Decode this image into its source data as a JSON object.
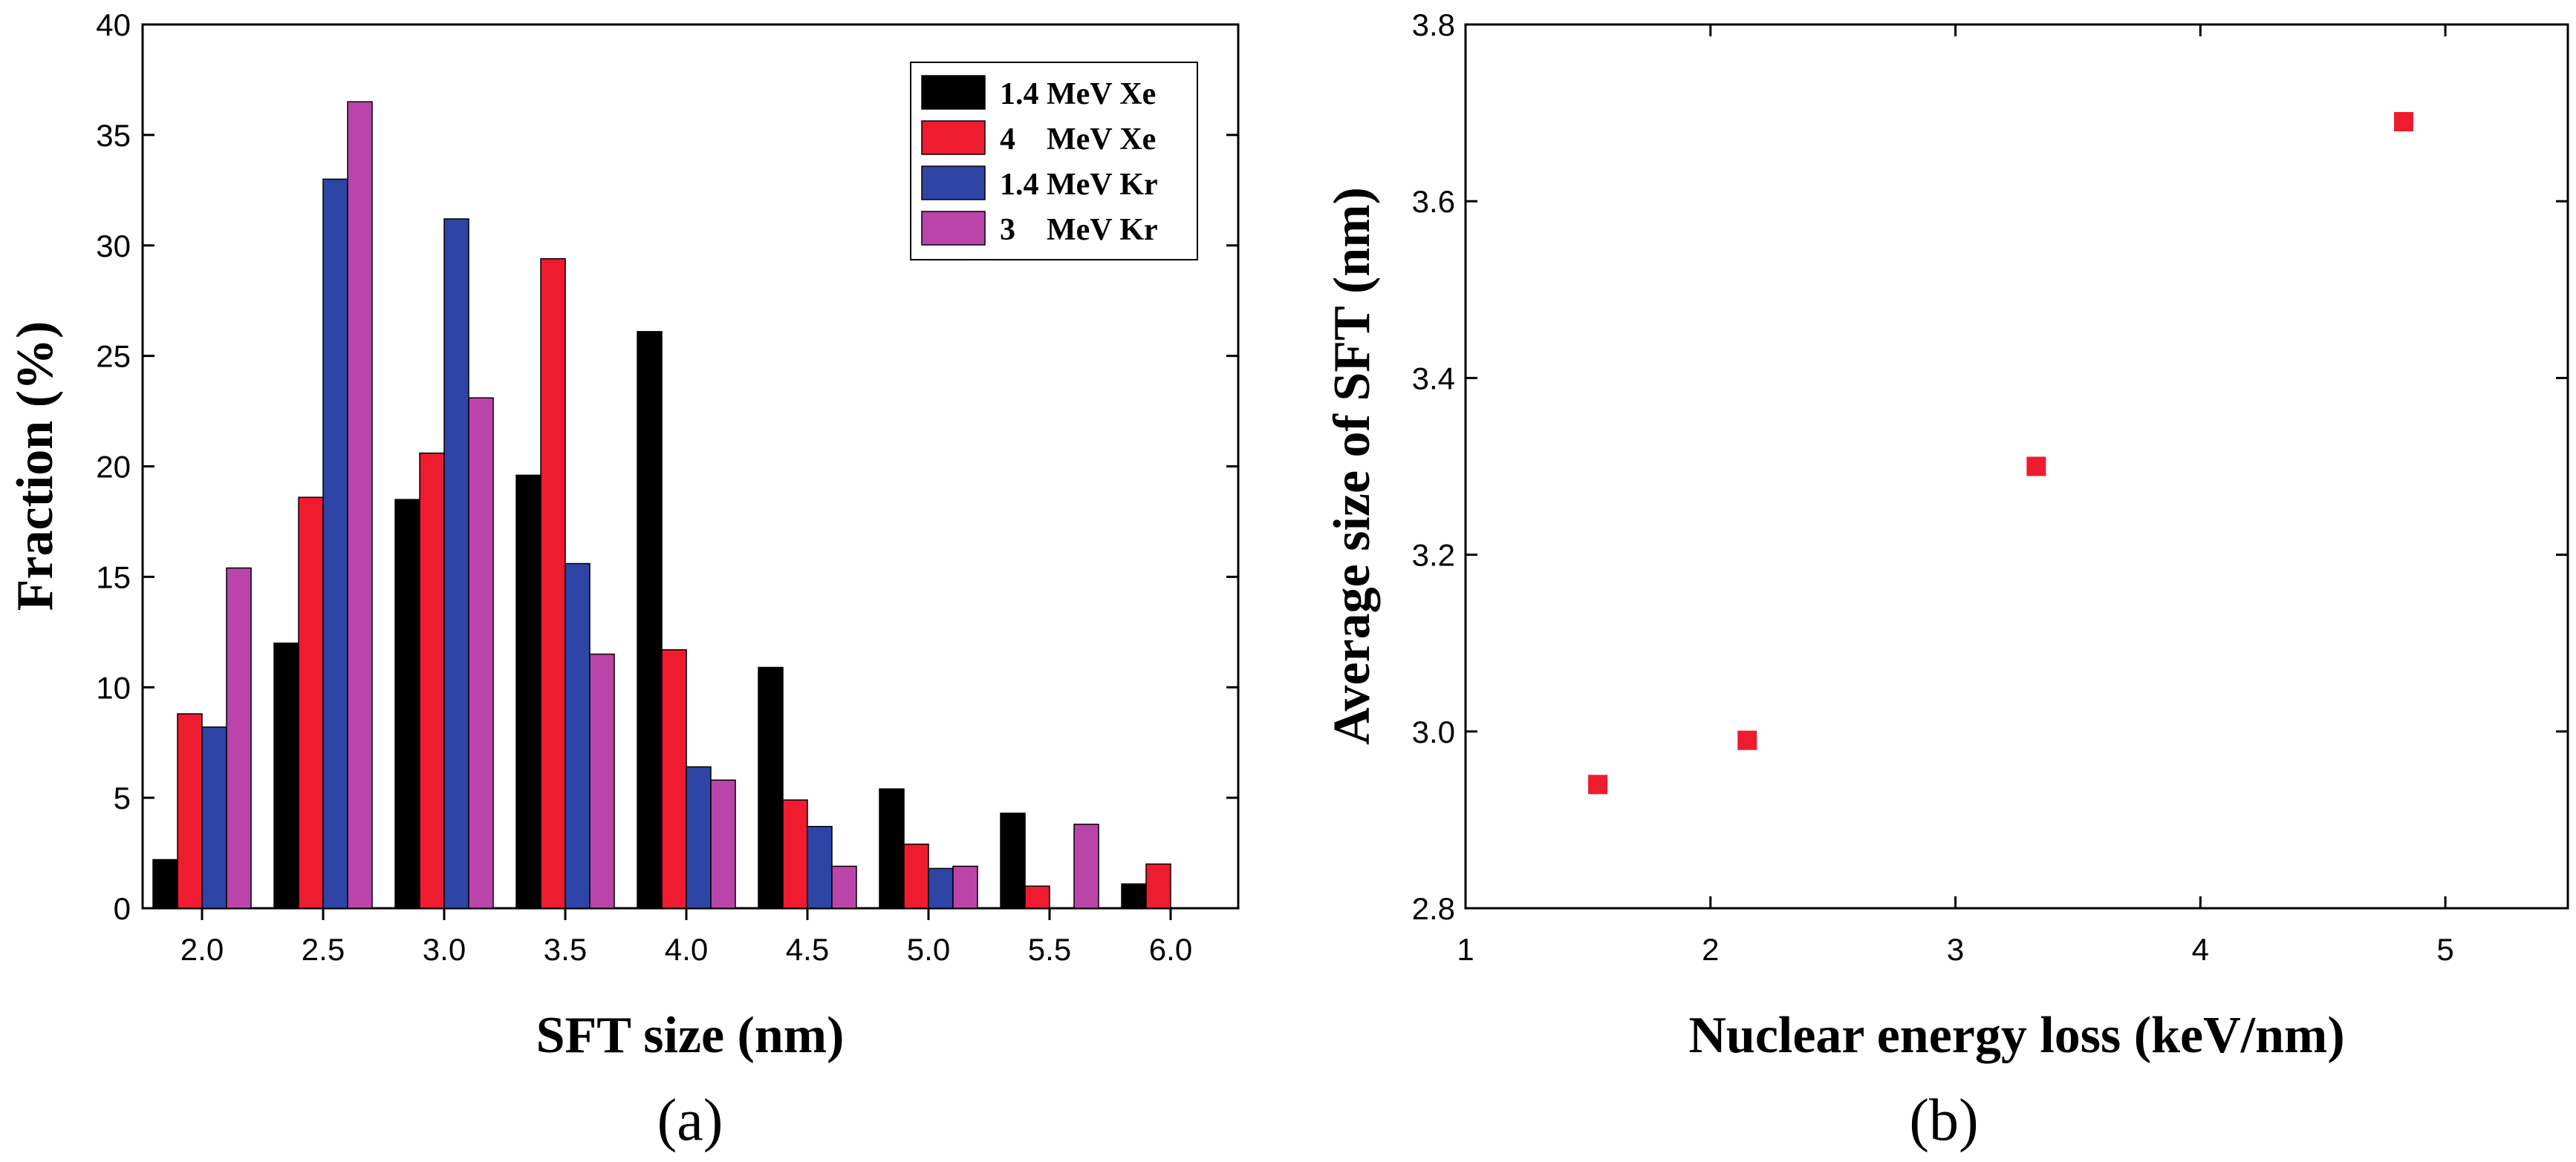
{
  "chart_data": [
    {
      "type": "bar",
      "panel_label": "(a)",
      "xlabel": "SFT size (nm)",
      "ylabel": "Fraction (%)",
      "categories": [
        "2.0",
        "2.5",
        "3.0",
        "3.5",
        "4.0",
        "4.5",
        "5.0",
        "5.5",
        "6.0"
      ],
      "ylim": [
        0,
        40
      ],
      "yticks": [
        0,
        5,
        10,
        15,
        20,
        25,
        30,
        35,
        40
      ],
      "legend_position": "top-right",
      "series": [
        {
          "name": "1.4 MeV Xe",
          "color": "#000000",
          "values": [
            2.2,
            12.0,
            18.5,
            19.6,
            26.1,
            10.9,
            5.4,
            4.3,
            1.1
          ]
        },
        {
          "name": "4    MeV Xe",
          "color": "#ee1c2e",
          "values": [
            8.8,
            18.6,
            20.6,
            29.4,
            11.7,
            4.9,
            2.9,
            1.0,
            2.0
          ]
        },
        {
          "name": "1.4 MeV Kr",
          "color": "#2e45a6",
          "values": [
            8.2,
            33.0,
            31.2,
            15.6,
            6.4,
            3.7,
            1.8,
            0,
            0
          ]
        },
        {
          "name": "3    MeV Kr",
          "color": "#bb44aa",
          "values": [
            15.4,
            36.5,
            23.1,
            11.5,
            5.8,
            1.9,
            1.9,
            3.8,
            0
          ]
        }
      ]
    },
    {
      "type": "scatter",
      "panel_label": "(b)",
      "xlabel": "Nuclear energy loss (keV/nm)",
      "ylabel": "Average size of SFT (nm)",
      "xlim": [
        1,
        5.5
      ],
      "ylim": [
        2.8,
        3.8
      ],
      "xticks": [
        1,
        2,
        3,
        4,
        5
      ],
      "yticks": [
        2.8,
        3.0,
        3.2,
        3.4,
        3.6,
        3.8
      ],
      "color": "#ee1c2e",
      "x": [
        1.54,
        2.15,
        3.33,
        4.83
      ],
      "y": [
        2.94,
        2.99,
        3.3,
        3.69
      ]
    }
  ]
}
